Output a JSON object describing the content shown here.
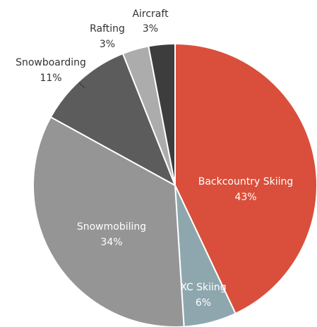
{
  "chart_data": {
    "type": "pie",
    "title": "",
    "slices": [
      {
        "label": "Backcountry Skiing",
        "value": 43,
        "value_label": "43%",
        "color": "#d94f3b"
      },
      {
        "label": "XC Skiing",
        "value": 6,
        "value_label": "6%",
        "color": "#8ea7ae"
      },
      {
        "label": "Snowmobiling",
        "value": 34,
        "value_label": "34%",
        "color": "#959595"
      },
      {
        "label": "Snowboarding",
        "value": 11,
        "value_label": "11%",
        "color": "#5c5c5c"
      },
      {
        "label": "Rafting",
        "value": 3,
        "value_label": "3%",
        "color": "#acacac"
      },
      {
        "label": "Aircraft",
        "value": 3,
        "value_label": "3%",
        "color": "#3d3d3d"
      }
    ],
    "start_angle_deg": 0,
    "direction": "clockwise",
    "legend": "none"
  }
}
